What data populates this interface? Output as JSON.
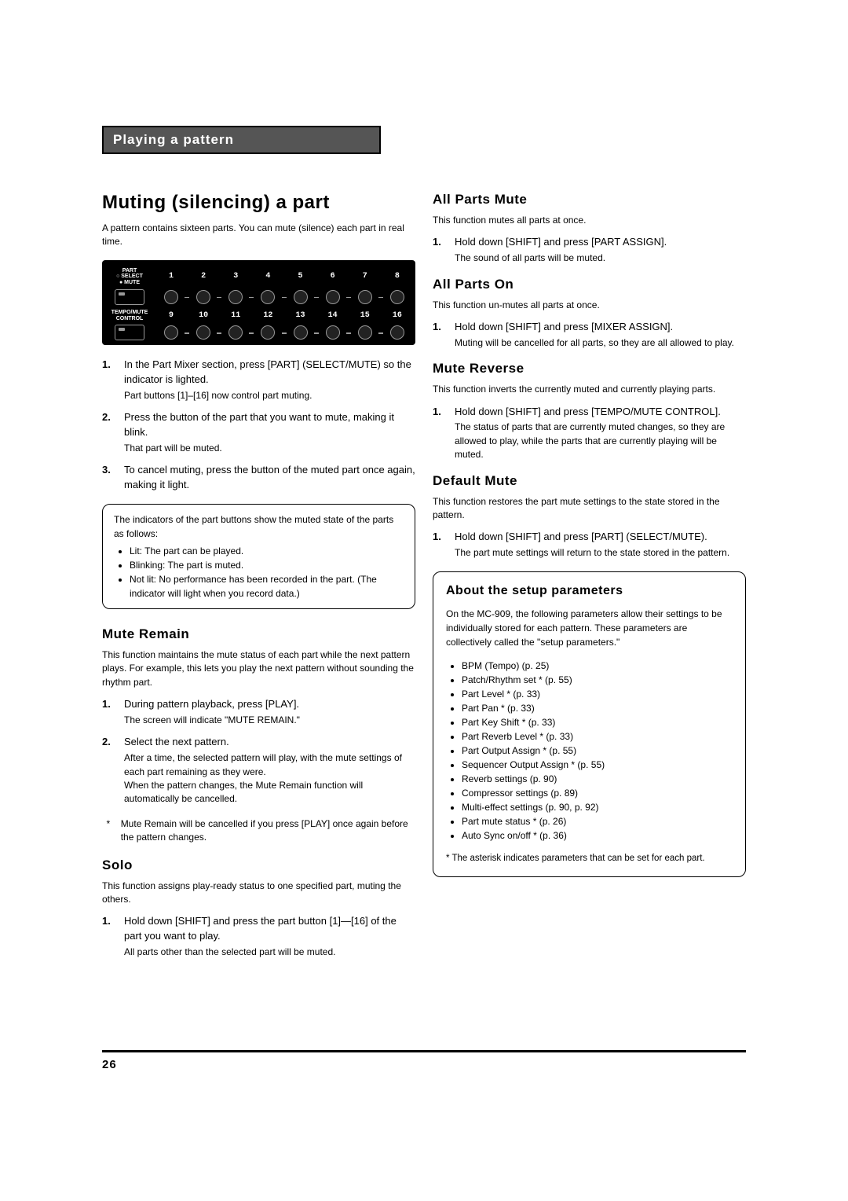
{
  "tab_header": "Playing a pattern",
  "page_number": "26",
  "left": {
    "h1": "Muting (silencing) a part",
    "intro": "A pattern contains sixteen parts. You can mute (silence) each part in real time.",
    "diagram": {
      "label_top": "PART\n○ SELECT\n● MUTE",
      "label_bottom": "TEMPO/MUTE\nCONTROL",
      "row1": [
        "1",
        "2",
        "3",
        "4",
        "5",
        "6",
        "7",
        "8"
      ],
      "row2": [
        "9",
        "10",
        "11",
        "12",
        "13",
        "14",
        "15",
        "16"
      ]
    },
    "steps_a": [
      {
        "n": "1.",
        "main": "In the Part Mixer section, press [PART] (SELECT/MUTE) so the indicator is lighted.",
        "sub": "Part buttons [1]–[16] now control part muting."
      },
      {
        "n": "2.",
        "main": "Press the button of the part that you want to mute, making it blink.",
        "sub": "That part will be muted."
      },
      {
        "n": "3.",
        "main": "To cancel muting, press the button of the muted part once again, making it light.",
        "sub": ""
      }
    ],
    "note_intro": "The indicators of the part buttons show the muted state of the parts as follows:",
    "note_items": [
      "Lit:  The part can be played.",
      "Blinking:   The part is muted.",
      "Not lit:  No performance has been recorded in the part. (The indicator will light when you record data.)"
    ],
    "mute_remain": {
      "title": "Mute Remain",
      "desc": "This function maintains the mute status of each part while the next pattern plays. For example, this lets you play the next pattern without sounding the rhythm part.",
      "steps": [
        {
          "n": "1.",
          "main": "During pattern playback, press [PLAY].",
          "sub": "The screen will indicate \"MUTE REMAIN.\""
        },
        {
          "n": "2.",
          "main": "Select the next pattern.",
          "sub": "After a time, the selected pattern will play, with the mute settings of each part remaining as they were.\nWhen the pattern changes, the Mute Remain function will automatically be cancelled."
        }
      ],
      "star": "Mute Remain will be cancelled if you press [PLAY] once again before the pattern changes."
    },
    "solo": {
      "title": "Solo",
      "desc": "This function assigns play-ready status to one specified part, muting the others.",
      "steps": [
        {
          "n": "1.",
          "main": "Hold down [SHIFT] and press the part button [1]—[16] of the part you want to play.",
          "sub": "All parts other than the selected part will be muted."
        }
      ]
    }
  },
  "right": {
    "all_mute": {
      "title": "All Parts Mute",
      "desc": "This function mutes all parts at once.",
      "steps": [
        {
          "n": "1.",
          "main": "Hold down [SHIFT] and press [PART ASSIGN].",
          "sub": "The sound of all parts will be muted."
        }
      ]
    },
    "all_on": {
      "title": "All Parts On",
      "desc": "This function un-mutes all parts at once.",
      "steps": [
        {
          "n": "1.",
          "main": "Hold down [SHIFT] and press [MIXER ASSIGN].",
          "sub": "Muting will be cancelled for all parts, so they are all allowed to play."
        }
      ]
    },
    "mute_rev": {
      "title": "Mute Reverse",
      "desc": "This function inverts the currently muted and currently playing parts.",
      "steps": [
        {
          "n": "1.",
          "main": "Hold down [SHIFT] and press [TEMPO/MUTE CONTROL].",
          "sub": "The status of parts that are currently muted changes, so they are allowed to play, while the parts that are currently playing will be muted."
        }
      ]
    },
    "default_mute": {
      "title": "Default Mute",
      "desc": "This function restores the part mute settings to the state stored in the pattern.",
      "steps": [
        {
          "n": "1.",
          "main": "Hold down [SHIFT] and press [PART] (SELECT/MUTE).",
          "sub": "The part mute settings will return to the state stored in the pattern."
        }
      ]
    },
    "setup": {
      "title": "About the setup parameters",
      "desc": "On the MC-909, the following parameters allow their settings to be individually stored for each pattern. These parameters are collectively called the \"setup parameters.\"",
      "items": [
        "BPM (Tempo) (p. 25)",
        "Patch/Rhythm set * (p. 55)",
        "Part Level * (p. 33)",
        "Part Pan * (p. 33)",
        "Part Key Shift * (p. 33)",
        "Part Reverb Level * (p. 33)",
        "Part Output Assign * (p. 55)",
        "Sequencer Output Assign * (p. 55)",
        "Reverb settings (p. 90)",
        "Compressor settings (p. 89)",
        "Multi-effect settings (p. 90, p. 92)",
        "Part mute status * (p. 26)",
        "Auto Sync on/off * (p. 36)"
      ],
      "foot": "*   The asterisk indicates parameters that can be set for each part."
    }
  }
}
